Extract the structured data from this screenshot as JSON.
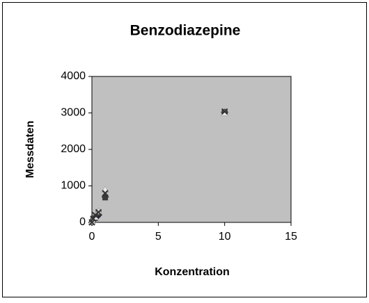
{
  "chart_data": {
    "type": "scatter",
    "title": "Benzodiazepine",
    "x_label": "Konzentration",
    "y_label": "Messdaten",
    "xlim": [
      0,
      15
    ],
    "xticks": [
      0,
      5,
      10,
      15
    ],
    "ylim": [
      0,
      4000
    ],
    "yticks": [
      0,
      1000,
      2000,
      3000,
      4000
    ],
    "plot_background": "#c0c0c0",
    "series": [
      {
        "marker": "diamond",
        "color": "#1f1f3f",
        "x": [
          0,
          0.1,
          0.25,
          0.5,
          1,
          10
        ],
        "values": [
          0,
          50,
          100,
          200,
          700,
          3020
        ]
      },
      {
        "marker": "square",
        "color": "#3a3a3a",
        "x": [
          0,
          0.1,
          0.25,
          0.5,
          1,
          10
        ],
        "values": [
          10,
          60,
          120,
          250,
          680,
          3010
        ]
      },
      {
        "marker": "triangle",
        "color": "#e8e8e8",
        "x": [
          0,
          0.1,
          0.25,
          0.5,
          1,
          10
        ],
        "values": [
          20,
          80,
          150,
          300,
          900,
          3000
        ]
      },
      {
        "marker": "cross",
        "color": "#333333",
        "x": [
          0,
          0.1,
          0.25,
          0.5,
          1,
          10
        ],
        "values": [
          0,
          100,
          200,
          280,
          800,
          3040
        ]
      }
    ]
  }
}
